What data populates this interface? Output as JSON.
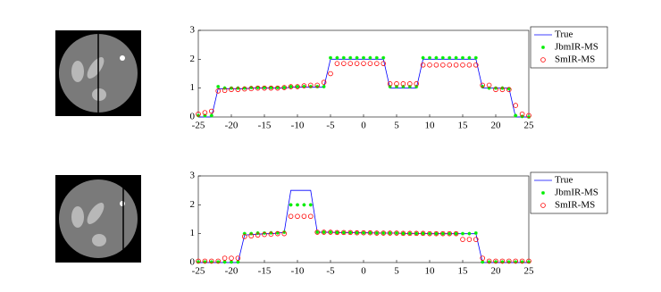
{
  "chart_data": [
    {
      "type": "line",
      "x": [
        -25,
        -24,
        -23,
        -22,
        -21,
        -20,
        -19,
        -18,
        -17,
        -16,
        -15,
        -14,
        -13,
        -12,
        -11,
        -10,
        -9,
        -8,
        -7,
        -6,
        -5,
        -4,
        -3,
        -2,
        -1,
        0,
        1,
        2,
        3,
        4,
        5,
        6,
        7,
        8,
        9,
        10,
        11,
        12,
        13,
        14,
        15,
        16,
        17,
        18,
        19,
        20,
        21,
        22,
        23,
        24,
        25
      ],
      "xlim": [
        -25,
        25
      ],
      "xticks": [
        -25,
        -20,
        -15,
        -10,
        -5,
        0,
        5,
        10,
        15,
        20,
        25
      ],
      "ylim": [
        0,
        3
      ],
      "yticks": [
        0,
        1,
        2,
        3
      ],
      "legend": "right",
      "series": [
        {
          "name": "True",
          "color": "#0000ff",
          "marker": "line",
          "values": [
            0,
            0,
            0,
            0.98,
            0.98,
            0.98,
            0.98,
            0.98,
            1.0,
            1.0,
            1.0,
            1.0,
            1.0,
            1.0,
            1.03,
            1.03,
            1.03,
            1.03,
            1.03,
            1.03,
            2,
            2,
            2,
            2,
            2,
            2,
            2,
            2,
            2,
            1,
            1,
            1,
            1,
            1,
            2,
            2,
            2,
            2,
            2,
            2,
            2,
            2,
            2,
            1,
            1,
            1,
            1,
            1,
            0,
            0,
            0
          ]
        },
        {
          "name": "JbmIR-MS",
          "color": "#00ee00",
          "marker": "asterisk",
          "values": [
            0.05,
            0.05,
            0.05,
            1.05,
            1.0,
            1.0,
            1.0,
            1.0,
            1.02,
            1.02,
            1.02,
            1.02,
            1.02,
            1.02,
            1.05,
            1.05,
            1.05,
            1.05,
            1.05,
            1.05,
            2.05,
            2.05,
            2.05,
            2.05,
            2.05,
            2.05,
            2.05,
            2.05,
            2.05,
            1.05,
            1.05,
            1.05,
            1.05,
            1.05,
            2.05,
            2.05,
            2.05,
            2.05,
            2.05,
            2.05,
            2.05,
            2.05,
            2.05,
            1.05,
            1.0,
            1.0,
            1.0,
            0.98,
            0.05,
            0.02,
            0
          ]
        },
        {
          "name": "SmIR-MS",
          "color": "#ff0000",
          "marker": "circle",
          "values": [
            0.1,
            0.15,
            0.2,
            0.9,
            0.92,
            0.95,
            0.95,
            0.97,
            0.98,
            1.0,
            1.0,
            1.0,
            1.0,
            1.02,
            1.05,
            1.05,
            1.08,
            1.1,
            1.1,
            1.2,
            1.5,
            1.85,
            1.85,
            1.85,
            1.85,
            1.85,
            1.85,
            1.85,
            1.85,
            1.15,
            1.15,
            1.15,
            1.15,
            1.15,
            1.8,
            1.8,
            1.8,
            1.8,
            1.8,
            1.8,
            1.8,
            1.8,
            1.8,
            1.1,
            1.1,
            0.95,
            0.95,
            0.95,
            0.4,
            0.1,
            0.05
          ]
        }
      ]
    },
    {
      "type": "line",
      "x": [
        -25,
        -24,
        -23,
        -22,
        -21,
        -20,
        -19,
        -18,
        -17,
        -16,
        -15,
        -14,
        -13,
        -12,
        -11,
        -10,
        -9,
        -8,
        -7,
        -6,
        -5,
        -4,
        -3,
        -2,
        -1,
        0,
        1,
        2,
        3,
        4,
        5,
        6,
        7,
        8,
        9,
        10,
        11,
        12,
        13,
        14,
        15,
        16,
        17,
        18,
        19,
        20,
        21,
        22,
        23,
        24,
        25
      ],
      "xlim": [
        -25,
        25
      ],
      "xticks": [
        -25,
        -20,
        -15,
        -10,
        -5,
        0,
        5,
        10,
        15,
        20,
        25
      ],
      "ylim": [
        0,
        3
      ],
      "yticks": [
        0,
        1,
        2,
        3
      ],
      "legend": "right",
      "series": [
        {
          "name": "True",
          "color": "#0000ff",
          "marker": "line",
          "values": [
            0,
            0,
            0,
            0,
            0,
            0,
            0,
            0.95,
            0.97,
            0.98,
            1.0,
            1.0,
            1.02,
            1.05,
            2.5,
            2.5,
            2.5,
            2.5,
            1.05,
            1.05,
            1.05,
            1.04,
            1.04,
            1.04,
            1.03,
            1.03,
            1.03,
            1.02,
            1.02,
            1.02,
            1.02,
            1.01,
            1.01,
            1.01,
            1.01,
            1.0,
            1.0,
            1.0,
            1.0,
            1.0,
            1.0,
            1.0,
            1.0,
            0,
            0,
            0,
            0,
            0,
            0,
            0,
            0
          ]
        },
        {
          "name": "JbmIR-MS",
          "color": "#00ee00",
          "marker": "asterisk",
          "values": [
            0.02,
            0.02,
            0.02,
            0.02,
            0.02,
            0.02,
            0.02,
            1.0,
            1.0,
            1.02,
            1.02,
            1.03,
            1.03,
            1.05,
            2.0,
            2.0,
            2.0,
            2.0,
            1.05,
            1.05,
            1.05,
            1.04,
            1.04,
            1.04,
            1.03,
            1.03,
            1.03,
            1.02,
            1.02,
            1.02,
            1.02,
            1.01,
            1.01,
            1.01,
            1.01,
            1.0,
            1.0,
            1.0,
            1.0,
            1.0,
            1.0,
            1.0,
            1.02,
            0.02,
            0.02,
            0.02,
            0.02,
            0.02,
            0.02,
            0.02,
            0.02
          ]
        },
        {
          "name": "SmIR-MS",
          "color": "#ff0000",
          "marker": "circle",
          "values": [
            0.05,
            0.05,
            0.05,
            0.05,
            0.15,
            0.15,
            0.15,
            0.9,
            0.92,
            0.95,
            0.97,
            0.98,
            1.0,
            1.0,
            1.6,
            1.6,
            1.6,
            1.6,
            1.05,
            1.05,
            1.05,
            1.04,
            1.04,
            1.04,
            1.03,
            1.03,
            1.03,
            1.02,
            1.02,
            1.02,
            1.02,
            1.01,
            1.01,
            1.01,
            1.01,
            1.0,
            1.0,
            1.0,
            1.0,
            1.0,
            0.8,
            0.8,
            0.8,
            0.15,
            0.05,
            0.05,
            0.05,
            0.05,
            0.05,
            0.05,
            0.05
          ]
        }
      ]
    }
  ]
}
